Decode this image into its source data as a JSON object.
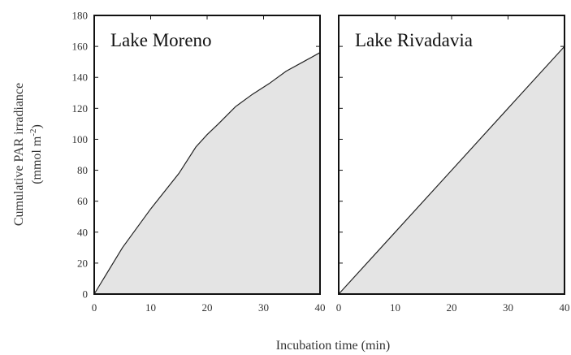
{
  "chart_data": {
    "type": "area",
    "xlabel": "Incubation time (min)",
    "ylabel_line1": "Cumulative PAR irradiance",
    "ylabel_line2_prefix": "(mmol m",
    "ylabel_line2_sup": "-2",
    "ylabel_line2_suffix": ")",
    "xlim": [
      0,
      40
    ],
    "ylim": [
      0,
      180
    ],
    "xticks": [
      0,
      10,
      20,
      30,
      40
    ],
    "yticks": [
      0,
      20,
      40,
      60,
      80,
      100,
      120,
      140,
      160,
      180
    ],
    "panels": [
      {
        "title": "Lake Moreno",
        "x": [
          0,
          5,
          10,
          15,
          18,
          20,
          22,
          25,
          28,
          31,
          34,
          37,
          40
        ],
        "y": [
          0,
          30,
          55,
          78,
          95,
          103,
          110,
          121,
          129,
          136,
          144,
          150,
          156
        ]
      },
      {
        "title": "Lake Rivadavia",
        "x": [
          0,
          10,
          20,
          30,
          40
        ],
        "y": [
          0,
          40,
          80,
          120,
          160
        ]
      }
    ]
  }
}
